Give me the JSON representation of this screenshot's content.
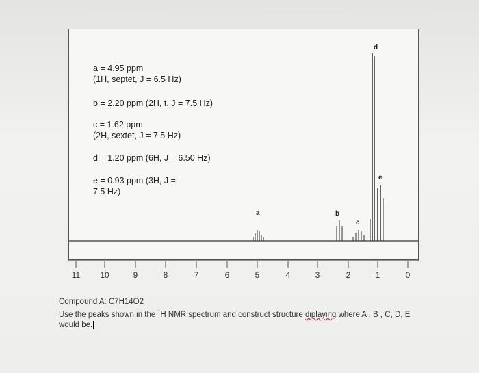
{
  "spectrum": {
    "notes": [
      "a = 4.95 ppm",
      "(1H, septet, J = 6.5 Hz)",
      "b = 2.20 ppm (2H, t, J = 7.5 Hz)",
      "c = 1.62 ppm",
      "(2H, sextet, J = 7.5 Hz)",
      "d = 1.20 ppm (6H, J = 6.50 Hz)",
      "e = 0.93 ppm (3H, J =",
      "7.5 Hz)"
    ],
    "peak_labels": [
      "a",
      "b",
      "c",
      "d",
      "e"
    ],
    "axis_labels": [
      11,
      10,
      9,
      8,
      7,
      6,
      5,
      4,
      3,
      2,
      1,
      0
    ]
  },
  "question": {
    "compound": "Compound A: C7H14O2",
    "prompt_start": "Use the peaks shown in the ",
    "superscript": "1",
    "prompt_mid": "H NMR spectrum and construct structure ",
    "misspelled": "diplaying",
    "prompt_end": " where A , B , C, D, E",
    "prompt_line2": "would be."
  }
}
